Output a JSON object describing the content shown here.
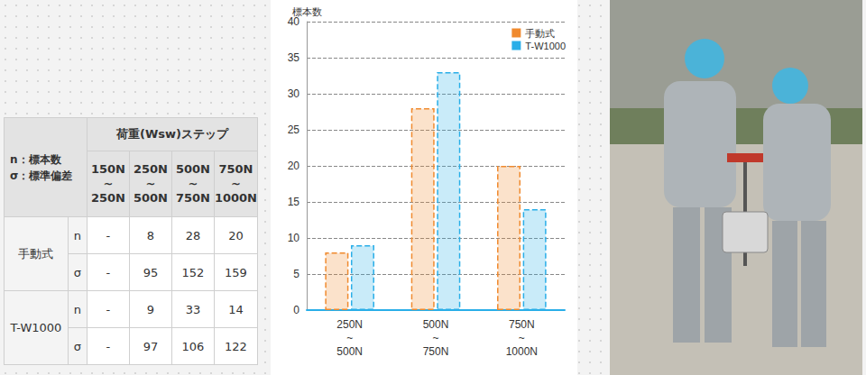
{
  "table": {
    "header": {
      "corner": [
        "n：標本数",
        "σ：標準偏差"
      ],
      "group": "荷重(Wsw)ステップ",
      "columns": [
        "150N~250N",
        "250N~500N",
        "500N~750N",
        "750N~1000N"
      ]
    },
    "rows": [
      {
        "method": "手動式",
        "cells": [
          {
            "stat": "n",
            "values": [
              "-",
              8,
              28,
              20
            ]
          },
          {
            "stat": "σ",
            "values": [
              "-",
              95,
              152,
              159
            ]
          }
        ]
      },
      {
        "method": "T-W1000",
        "cells": [
          {
            "stat": "n",
            "values": [
              "-",
              9,
              33,
              14
            ]
          },
          {
            "stat": "σ",
            "values": [
              "-",
              97,
              106,
              122
            ]
          }
        ]
      }
    ]
  },
  "chart_data": {
    "type": "bar",
    "y_label": "標本数",
    "categories": [
      "250N~500N",
      "500N~750N",
      "750N~1000N"
    ],
    "series": [
      {
        "name": "手動式",
        "color": "#f08a2e",
        "values": [
          8,
          28,
          20
        ]
      },
      {
        "name": "T-W1000",
        "color": "#29aee8",
        "values": [
          9,
          33,
          14
        ]
      }
    ],
    "ylim": [
      0,
      40
    ],
    "yticks": [
      0,
      5,
      10,
      15,
      20,
      25,
      30,
      35,
      40
    ],
    "grid": true,
    "legend": "upper right"
  }
}
